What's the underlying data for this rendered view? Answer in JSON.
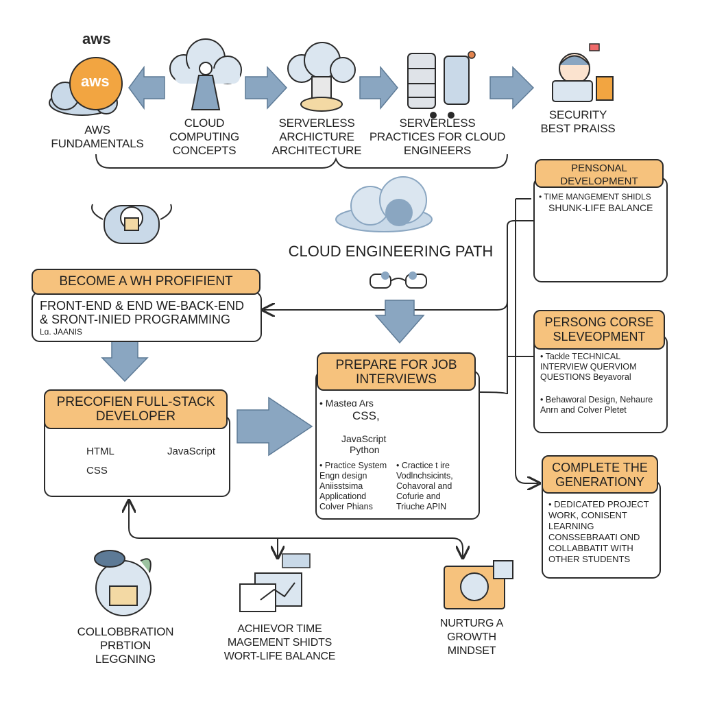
{
  "title": "CLOUD ENGINEERING PATH",
  "top_row": {
    "aws_logo": "aws",
    "aws_badge": "aws",
    "stages": [
      {
        "label": "AWS FUNDAMENTALS"
      },
      {
        "label": "CLOUD COMPUTING CONCEPTS"
      },
      {
        "label": "SERVERLESS ARCHICTURE ARCHITECTURE"
      },
      {
        "label": "SERVERLESS PRACTICES FOR CLOUD ENGINEERS"
      },
      {
        "label": "SECURITY BEST PRAISS"
      }
    ]
  },
  "become": {
    "header": "BECOME A WH PROFIFIENT",
    "line1": "FRONT-END & END WE-BACK-END",
    "line2": "& SRONT-INIED PROGRAMMING",
    "line3": "Lɑ. JAANIS"
  },
  "fullstack": {
    "header": "PRECOFIEN FULL-STACK DEVELOPER",
    "html": "HTML",
    "css": "CSS",
    "js": "JavaScript"
  },
  "prepare": {
    "header": "PREPARE FOR JOB INTERVIEWS",
    "col1_top": [
      "Masteɑ Ars",
      "CSS,",
      "JavaScript",
      "Python"
    ],
    "col1_bottom": [
      "Practice System",
      "Engn design",
      "Aniisstsima",
      "Applicationd",
      "Colver Phians"
    ],
    "col2_bottom": [
      "Cractice t ire",
      "Vodlnchsicints,",
      "Cohavoral and",
      "Cofurie and",
      "Triuche APIN"
    ]
  },
  "personal": {
    "header": "PENSONAL DEVELOPMENT",
    "bullets": [
      "TIME MANGEMENT SHIDLS",
      "SHUNK-LIFE BALANCE"
    ]
  },
  "persong": {
    "header": "PERSONG CORSE SLEVEOPMENT",
    "bullets": [
      "Tackle TECHNICAL INTERVIEW QUERVIOM QUESTIONS Beyavoral",
      "Behaworal Design, Nehaure Anrn and Colver Pletet"
    ]
  },
  "complete": {
    "header": "COMPLETE THE GENERATIONY",
    "bullets": [
      "DEDICATED PROJECT WORK, CONISENT LEARNING CONSSEBRAATI OND COLLABBATIT WITH OTHER STUDENTS"
    ]
  },
  "bottom": [
    {
      "label": "COLLOBBRATION PRBTION LEGGNING"
    },
    {
      "label": "ACHIEVOR TIME MAGEMENT SHIDTS WORT-LIFE BALANCE"
    },
    {
      "label": "NURTURG A GROWTH MINDSET"
    }
  ],
  "colors": {
    "accent": "#f6c27d",
    "arrow": "#8aa6c1",
    "line": "#2a2a2a",
    "cloud": "#c9d9e8"
  }
}
